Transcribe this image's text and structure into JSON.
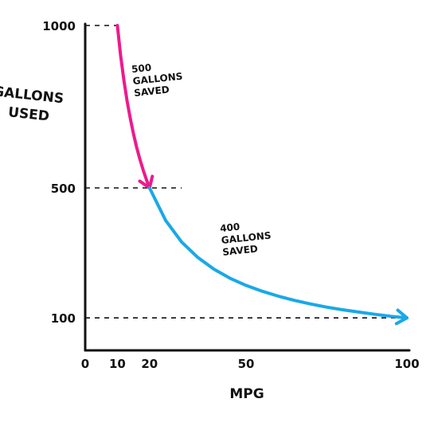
{
  "chart_data": {
    "type": "line",
    "title": "",
    "xlabel": "MPG",
    "ylabel": [
      "GALLONS",
      "USED"
    ],
    "xlim": [
      0,
      100
    ],
    "ylim": [
      0,
      1000
    ],
    "x_ticks": [
      {
        "value": 0,
        "label": "0"
      },
      {
        "value": 10,
        "label": "10"
      },
      {
        "value": 20,
        "label": "20"
      },
      {
        "value": 50,
        "label": "50"
      },
      {
        "value": 100,
        "label": "100"
      }
    ],
    "y_ticks": [
      {
        "value": 100,
        "label": "100"
      },
      {
        "value": 500,
        "label": "500"
      },
      {
        "value": 1000,
        "label": "1000"
      }
    ],
    "guide_lines": [
      {
        "y": 1000,
        "x_to": 10
      },
      {
        "y": 500,
        "x_to": 30
      },
      {
        "y": 100,
        "x_to": 100
      }
    ],
    "series": [
      {
        "color": "#ee1a8c",
        "x": [
          10,
          11,
          12,
          13,
          14,
          15,
          16,
          17,
          18,
          19,
          20
        ],
        "y": [
          1000,
          909,
          833,
          769,
          714,
          667,
          625,
          588,
          556,
          526,
          500
        ]
      },
      {
        "color": "#1aa8e8",
        "x": [
          20,
          25,
          30,
          35,
          40,
          45,
          50,
          55,
          60,
          65,
          70,
          75,
          80,
          85,
          90,
          95,
          100
        ],
        "y": [
          500,
          400,
          333,
          286,
          250,
          222,
          200,
          182,
          167,
          154,
          143,
          133,
          125,
          118,
          111,
          105,
          100
        ]
      }
    ],
    "annotations": [
      {
        "lines": [
          "500",
          "GALLONS",
          "SAVED"
        ],
        "x": 14.5,
        "y": 855
      },
      {
        "lines": [
          "400",
          "GALLONS",
          "SAVED"
        ],
        "x": 42,
        "y": 365
      }
    ],
    "grid": false,
    "legend": "none"
  }
}
